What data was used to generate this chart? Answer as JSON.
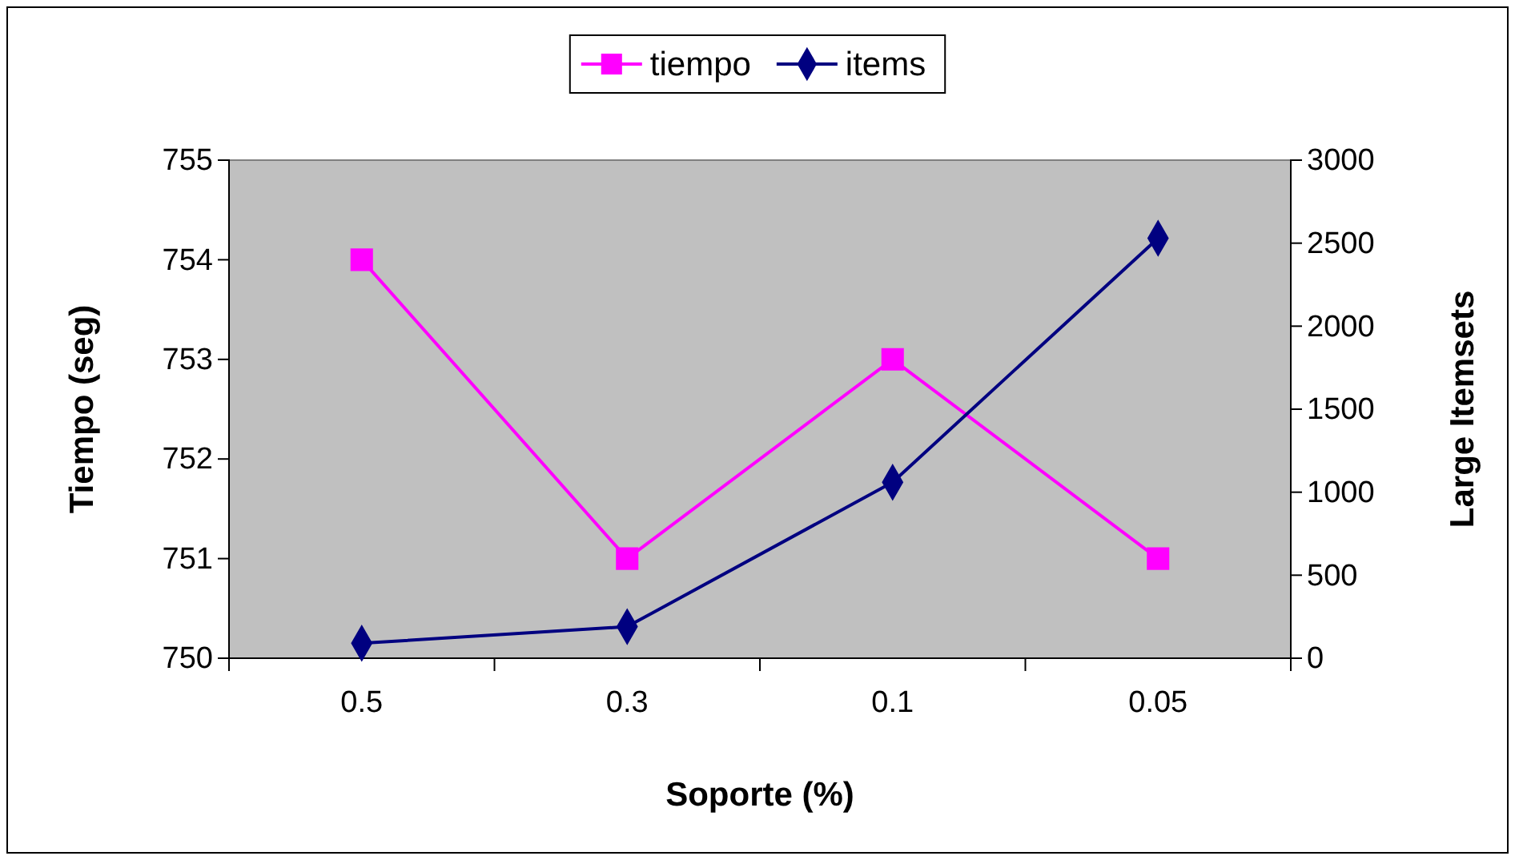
{
  "chart_data": {
    "type": "line",
    "xlabel": "Soporte (%)",
    "ylabel": "Tiempo (seg)",
    "y2label": "Large Itemsets",
    "categories": [
      "0.5",
      "0.3",
      "0.1",
      "0.05"
    ],
    "series": [
      {
        "name": "tiempo",
        "color": "#ff00ff",
        "marker": "square",
        "values": [
          754,
          751,
          753,
          751
        ]
      },
      {
        "name": "items",
        "color": "#000080",
        "marker": "diamond",
        "axis": "y2",
        "values": [
          90,
          190,
          1060,
          2530
        ]
      }
    ],
    "ylim": [
      750,
      755
    ],
    "yticks": [
      750,
      751,
      752,
      753,
      754,
      755
    ],
    "y2lim": [
      0,
      3000
    ],
    "y2ticks": [
      0,
      500,
      1000,
      1500,
      2000,
      2500,
      3000
    ],
    "grid": false,
    "legend": "top"
  }
}
